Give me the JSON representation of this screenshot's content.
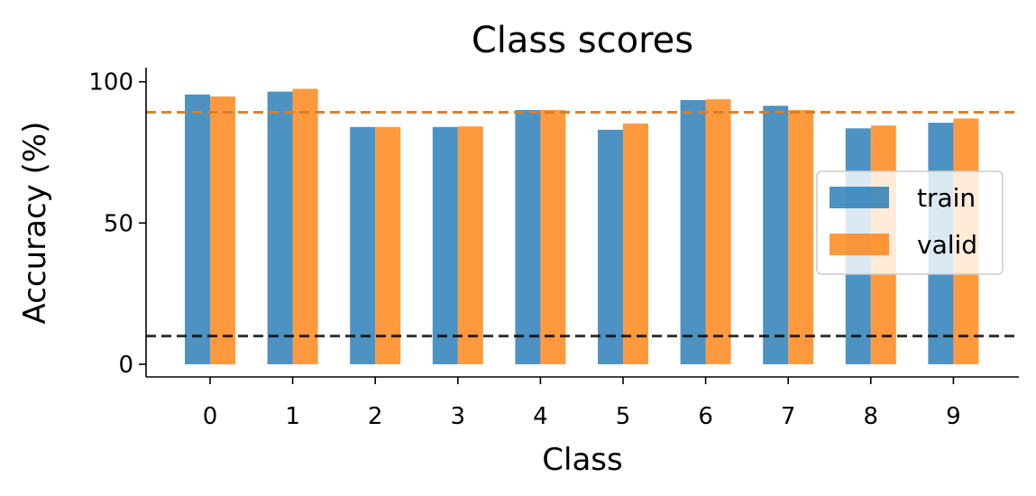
{
  "chart_data": {
    "type": "bar",
    "title": "Class scores",
    "xlabel": "Class",
    "ylabel": "Accuracy (%)",
    "categories": [
      "0",
      "1",
      "2",
      "3",
      "4",
      "5",
      "6",
      "7",
      "8",
      "9"
    ],
    "series": [
      {
        "name": "train",
        "color": "#1f77b4",
        "values": [
          95.5,
          96.5,
          84.0,
          84.0,
          90.0,
          83.0,
          93.5,
          91.5,
          83.5,
          85.5
        ]
      },
      {
        "name": "valid",
        "color": "#ff7f0e",
        "values": [
          94.8,
          97.5,
          84.0,
          84.2,
          90.0,
          85.2,
          93.8,
          90.0,
          84.5,
          87.0
        ]
      }
    ],
    "reference_lines": [
      {
        "y": 89.2,
        "color": "#1f77b4",
        "style": "dashed"
      },
      {
        "y": 89.2,
        "color": "#ff7f0e",
        "style": "dashed"
      },
      {
        "y": 10.0,
        "color": "#000000",
        "style": "dashed"
      }
    ],
    "ylim": [
      -4.5,
      105
    ],
    "yticks": [
      0,
      50,
      100
    ],
    "grid": false,
    "legend_position": "center-right"
  }
}
